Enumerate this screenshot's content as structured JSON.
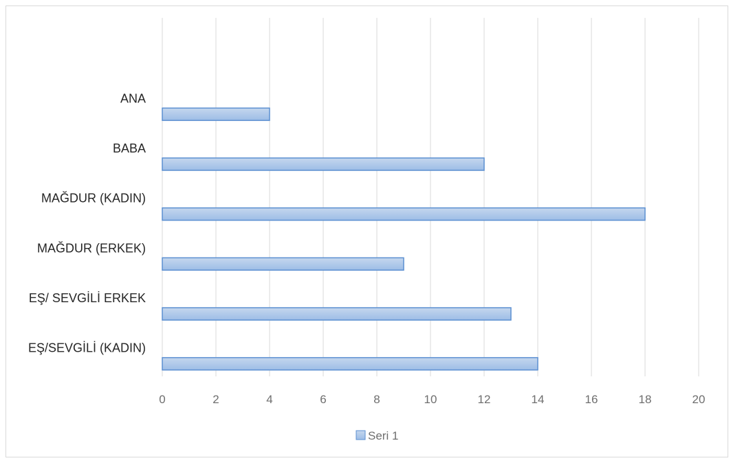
{
  "chart_data": {
    "type": "bar",
    "orientation": "horizontal",
    "categories": [
      "ANA",
      "BABA",
      "MAĞDUR (KADIN)",
      "MAĞDUR (ERKEK)",
      "EŞ/ SEVGİLİ ERKEK",
      "EŞ/SEVGİLİ (KADIN)"
    ],
    "series": [
      {
        "name": "Seri 1",
        "values": [
          4,
          12,
          18,
          9,
          13,
          14
        ]
      }
    ],
    "xlim": [
      0,
      20
    ],
    "xticks": [
      0,
      2,
      4,
      6,
      8,
      10,
      12,
      14,
      16,
      18,
      20
    ],
    "grid": true,
    "legend_position": "bottom",
    "colors": {
      "bar_top": "#c5d7ee",
      "bar_bottom": "#9dbde6",
      "bar_border": "#5b8fd1",
      "grid": "#d9d9d9"
    }
  }
}
